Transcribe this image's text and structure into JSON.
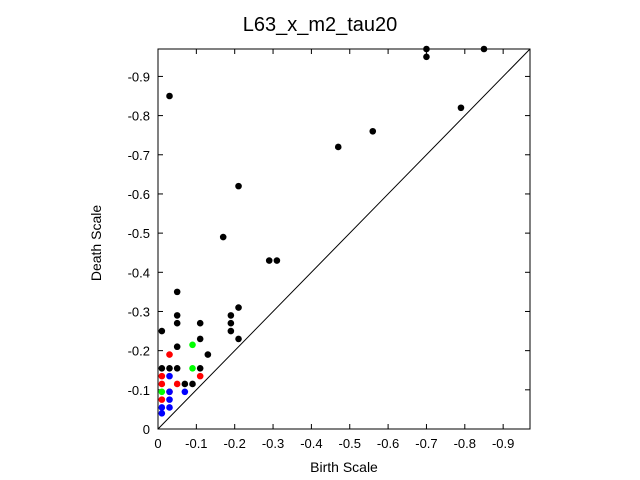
{
  "chart_data": {
    "type": "scatter",
    "title": "L63_x_m2_tau20",
    "xlabel": "Birth Scale",
    "ylabel": "Death Scale",
    "xlim": [
      0,
      -0.97
    ],
    "ylim": [
      0,
      -0.97
    ],
    "x_ticks": [
      "0",
      "-0.1",
      "-0.2",
      "-0.3",
      "-0.4",
      "-0.5",
      "-0.6",
      "-0.7",
      "-0.8",
      "-0.9"
    ],
    "y_ticks": [
      "0",
      "-0.1",
      "-0.2",
      "-0.3",
      "-0.4",
      "-0.5",
      "-0.6",
      "-0.7",
      "-0.8",
      "-0.9"
    ],
    "diagonal": true,
    "grid": false,
    "series": [
      {
        "color": "#000000",
        "points": [
          [
            -0.7,
            -0.97
          ],
          [
            -0.85,
            -0.97
          ],
          [
            -0.7,
            -0.95
          ],
          [
            -0.79,
            -0.82
          ],
          [
            -0.56,
            -0.76
          ],
          [
            -0.47,
            -0.72
          ],
          [
            -0.03,
            -0.85
          ],
          [
            -0.21,
            -0.62
          ],
          [
            -0.17,
            -0.49
          ],
          [
            -0.29,
            -0.43
          ],
          [
            -0.31,
            -0.43
          ],
          [
            -0.05,
            -0.35
          ],
          [
            -0.21,
            -0.31
          ],
          [
            -0.05,
            -0.29
          ],
          [
            -0.19,
            -0.29
          ],
          [
            -0.05,
            -0.27
          ],
          [
            -0.11,
            -0.27
          ],
          [
            -0.19,
            -0.27
          ],
          [
            -0.01,
            -0.25
          ],
          [
            -0.19,
            -0.25
          ],
          [
            -0.11,
            -0.23
          ],
          [
            -0.21,
            -0.23
          ],
          [
            -0.05,
            -0.21
          ],
          [
            -0.13,
            -0.19
          ],
          [
            -0.01,
            -0.155
          ],
          [
            -0.03,
            -0.155
          ],
          [
            -0.05,
            -0.155
          ],
          [
            -0.11,
            -0.155
          ],
          [
            -0.07,
            -0.115
          ],
          [
            -0.09,
            -0.115
          ]
        ]
      },
      {
        "color": "#ff0000",
        "points": [
          [
            -0.03,
            -0.19
          ],
          [
            -0.01,
            -0.135
          ],
          [
            -0.01,
            -0.115
          ],
          [
            -0.05,
            -0.115
          ],
          [
            -0.11,
            -0.135
          ],
          [
            -0.03,
            -0.095
          ],
          [
            -0.01,
            -0.075
          ]
        ]
      },
      {
        "color": "#00ff00",
        "points": [
          [
            -0.09,
            -0.215
          ],
          [
            -0.09,
            -0.155
          ],
          [
            -0.01,
            -0.095
          ]
        ]
      },
      {
        "color": "#0000ff",
        "points": [
          [
            -0.03,
            -0.135
          ],
          [
            -0.03,
            -0.095
          ],
          [
            -0.07,
            -0.095
          ],
          [
            -0.03,
            -0.075
          ],
          [
            -0.01,
            -0.055
          ],
          [
            -0.03,
            -0.055
          ],
          [
            -0.01,
            -0.04
          ]
        ]
      }
    ]
  }
}
